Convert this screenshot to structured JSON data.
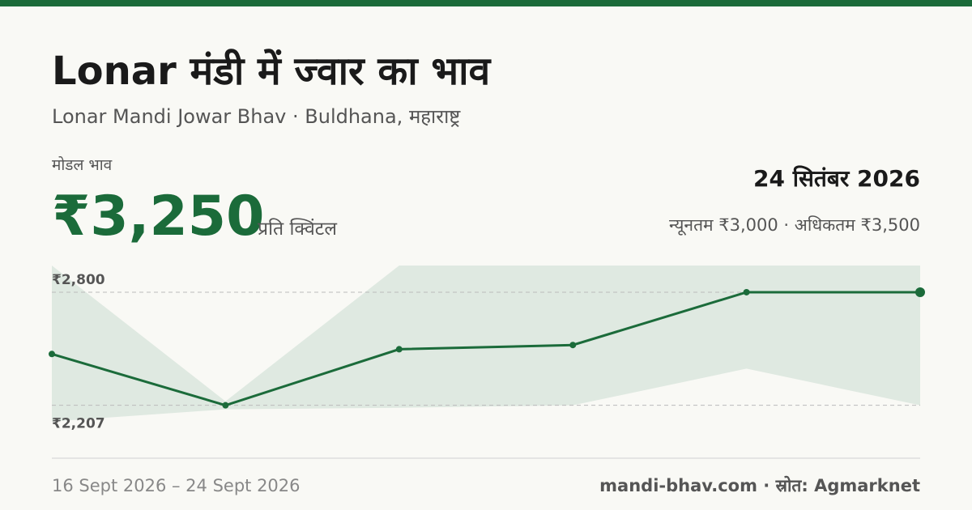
{
  "header": {
    "title": "Lonar मंडी में ज्वार का भाव",
    "subtitle": "Lonar Mandi Jowar Bhav · Buldhana, महाराष्ट्र"
  },
  "price": {
    "label": "मोडल भाव",
    "value": "₹3,250",
    "unit": "प्रति क्विंटल",
    "date": "24 सितंबर 2026",
    "range": "न्यूनतम ₹3,000 · अधिकतम ₹3,500"
  },
  "chart_data": {
    "type": "line",
    "categories": [
      null,
      null,
      null,
      null,
      null,
      null
    ],
    "values": [
      2476,
      2207,
      2501,
      2523,
      2800,
      2800
    ],
    "low": [
      2122,
      2186,
      2194,
      2207,
      2399,
      2207
    ],
    "high": [
      2940,
      2228,
      2940,
      2940,
      2940,
      2940
    ],
    "color": "#1b6b3a",
    "band_color": "#dfe9e1",
    "ylim": [
      2040,
      2940
    ],
    "yticks": [
      {
        "value": 2800,
        "label": "₹2,800"
      },
      {
        "value": 2207,
        "label": "₹2,207"
      }
    ],
    "grid": true
  },
  "footer": {
    "period": "16 Sept 2026 – 24 Sept 2026",
    "source": "mandi-bhav.com · स्रोत: Agmarknet"
  }
}
